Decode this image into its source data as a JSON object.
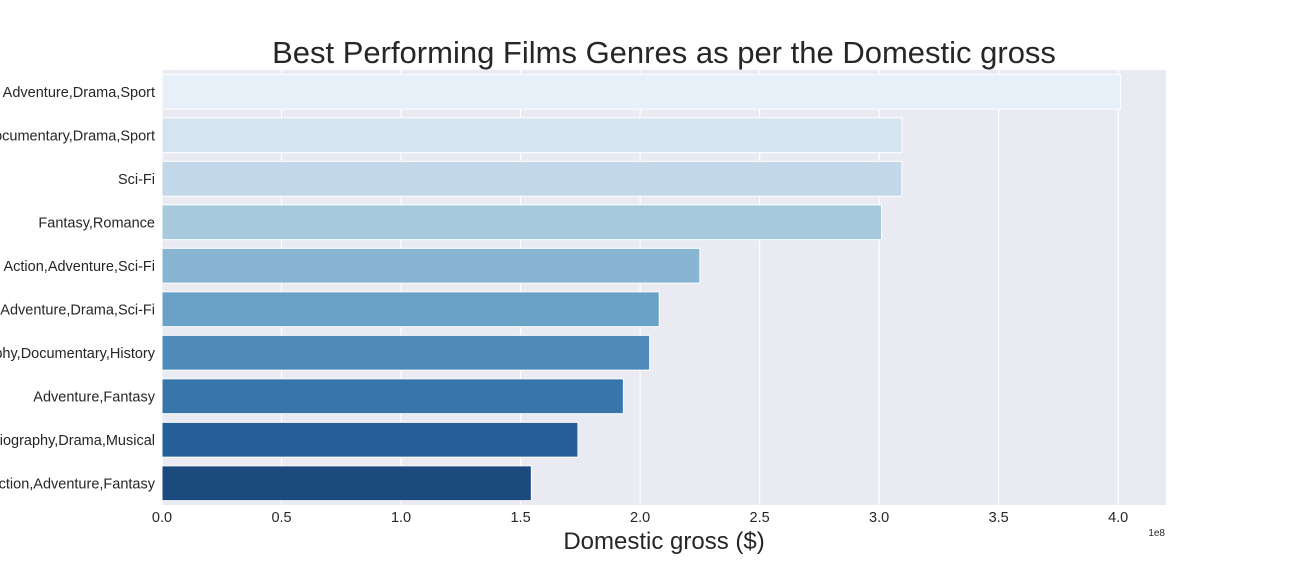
{
  "chart_data": {
    "type": "bar",
    "orientation": "horizontal",
    "title": "Best Performing Films Genres as per the Domestic gross",
    "xlabel": "Domestic gross ($)",
    "ylabel": "",
    "axis_offset_label": "1e8",
    "xlim": [
      0,
      4.2
    ],
    "xticks": [
      0.0,
      0.5,
      1.0,
      1.5,
      2.0,
      2.5,
      3.0,
      3.5,
      4.0
    ],
    "xtick_labels": [
      "0.0",
      "0.5",
      "1.0",
      "1.5",
      "2.0",
      "2.5",
      "3.0",
      "3.5",
      "4.0"
    ],
    "categories": [
      "Adventure,Drama,Sport",
      "Documentary,Drama,Sport",
      "Sci-Fi",
      "Fantasy,Romance",
      "Action,Adventure,Sci-Fi",
      "Adventure,Drama,Sci-Fi",
      "Biography,Documentary,History",
      "Adventure,Fantasy",
      "Biography,Drama,Musical",
      "Action,Adventure,Fantasy"
    ],
    "values": [
      4.01,
      3.095,
      3.095,
      3.01,
      2.25,
      2.08,
      2.04,
      1.93,
      1.74,
      1.545
    ],
    "colors": [
      "#e7eff8",
      "#d6e3f0",
      "#c2d8e9",
      "#a6c9dd",
      "#87b5d2",
      "#69a1c7",
      "#4f8bba",
      "#3775aa",
      "#255f98",
      "#1b4a7f"
    ],
    "grid": true,
    "background": "#eaeaf2"
  }
}
